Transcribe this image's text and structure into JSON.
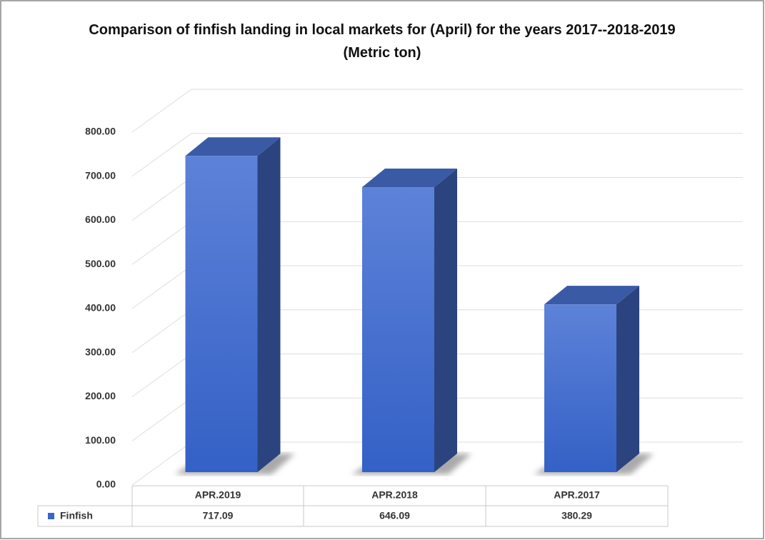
{
  "chart_data": {
    "type": "bar3d",
    "title": "Comparison of finfish landing in local markets for (April) for the years 2017--2018-2019 (Metric ton)",
    "categories": [
      "APR.2019",
      "APR.2018",
      "APR.2017"
    ],
    "series": [
      {
        "name": "Finfish",
        "color": "#3a66cc",
        "values": [
          717.09,
          646.09,
          380.29
        ]
      }
    ],
    "ylim": [
      0,
      800
    ],
    "yticks": [
      {
        "value": 0,
        "label": "0.00"
      },
      {
        "value": 100,
        "label": "100.00"
      },
      {
        "value": 200,
        "label": "200.00"
      },
      {
        "value": 300,
        "label": "300.00"
      },
      {
        "value": 400,
        "label": "400.00"
      },
      {
        "value": 500,
        "label": "500.00"
      },
      {
        "value": 600,
        "label": "600.00"
      },
      {
        "value": 700,
        "label": "700.00"
      },
      {
        "value": 800,
        "label": "800.00"
      }
    ],
    "grid": true,
    "data_table": true
  }
}
